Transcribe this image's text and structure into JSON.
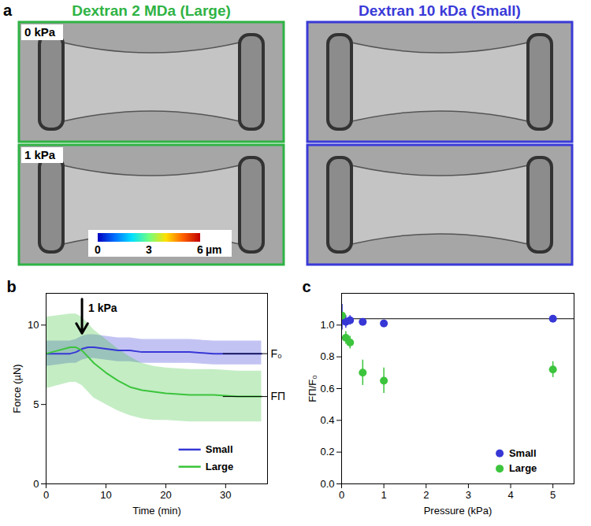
{
  "panel_a": {
    "label": "a",
    "columns": [
      {
        "title": "Dextran 2 MDa (Large)",
        "color": "#2fb344"
      },
      {
        "title": "Dextran 10 kDa (Small)",
        "color": "#3a3ad8"
      }
    ],
    "rows": [
      "0 kPa",
      "1 kPa"
    ],
    "colorbar": {
      "lim": [
        0,
        6
      ],
      "ticks": [
        0,
        3,
        6
      ],
      "unit": "µm"
    }
  },
  "chart_data": [
    {
      "type": "line",
      "panel": "b",
      "x_label": "Time (min)",
      "y_label": "Force (µN)",
      "x": [
        0,
        2,
        4,
        5,
        6,
        7,
        8,
        10,
        12,
        14,
        16,
        18,
        20,
        24,
        28,
        32,
        36
      ],
      "series": [
        {
          "name": "Small",
          "color": "#3737d6",
          "values": [
            8.2,
            8.2,
            8.2,
            8.3,
            8.5,
            8.6,
            8.6,
            8.5,
            8.4,
            8.4,
            8.3,
            8.3,
            8.3,
            8.3,
            8.2,
            8.2,
            8.2
          ],
          "lower": [
            7.4,
            7.5,
            7.6,
            7.6,
            7.8,
            7.9,
            7.9,
            7.8,
            7.7,
            7.7,
            7.6,
            7.6,
            7.6,
            7.6,
            7.5,
            7.5,
            7.5
          ],
          "upper": [
            9.0,
            9.0,
            9.0,
            9.1,
            9.3,
            9.4,
            9.4,
            9.3,
            9.2,
            9.2,
            9.1,
            9.1,
            9.1,
            9.1,
            9.0,
            9.0,
            9.0
          ]
        },
        {
          "name": "Large",
          "color": "#3cc43c",
          "values": [
            8.2,
            8.4,
            8.6,
            8.6,
            8.4,
            8.0,
            7.6,
            7.0,
            6.5,
            6.1,
            5.9,
            5.8,
            5.7,
            5.6,
            5.6,
            5.5,
            5.5
          ],
          "lower": [
            6.0,
            6.2,
            6.4,
            6.4,
            6.2,
            5.8,
            5.4,
            5.0,
            4.6,
            4.3,
            4.1,
            4.0,
            4.0,
            3.9,
            3.9,
            3.9,
            3.9
          ],
          "upper": [
            10.5,
            10.6,
            10.7,
            10.7,
            10.5,
            10.1,
            9.7,
            9.1,
            8.5,
            8.0,
            7.6,
            7.4,
            7.3,
            7.2,
            7.2,
            7.1,
            7.1
          ]
        }
      ],
      "reference_lines": [
        {
          "label": "F₀",
          "value": 8.2,
          "line_style": "dashed"
        },
        {
          "label": "FΠ",
          "value": 5.5,
          "line_style": "dashed"
        }
      ],
      "annotations": [
        {
          "text": "1 kPa",
          "x": 6
        }
      ],
      "xlim": [
        0,
        37
      ],
      "xticks": [
        0,
        10,
        20,
        30
      ],
      "ylim": [
        0,
        12
      ],
      "yticks": [
        0,
        5,
        10
      ],
      "legend": "bottom-right"
    },
    {
      "type": "scatter",
      "panel": "c",
      "x_label": "Pressure (kPa)",
      "y_label": "FΠ/F₀",
      "marker": "circle",
      "series": [
        {
          "name": "Small",
          "color": "#3737d6",
          "x": [
            0.01,
            0.1,
            0.2,
            0.5,
            1,
            5
          ],
          "values": [
            1.05,
            1.02,
            1.03,
            1.02,
            1.01,
            1.04
          ],
          "errors": [
            0.08,
            0.04,
            0.03,
            0.01,
            0.02,
            0.01
          ]
        },
        {
          "name": "Large",
          "color": "#3cc43c",
          "x": [
            0.01,
            0.1,
            0.2,
            0.5,
            1,
            5
          ],
          "values": [
            1.06,
            0.92,
            0.89,
            0.7,
            0.65,
            0.72
          ],
          "errors": [
            0.02,
            0.04,
            0.04,
            0.08,
            0.08,
            0.05
          ]
        }
      ],
      "reference_line": {
        "value": 1.04,
        "line_style": "dashed"
      },
      "xlim": [
        0,
        5.5
      ],
      "xticks": [
        0,
        1,
        2,
        3,
        4,
        5
      ],
      "ylim": [
        0,
        1.2
      ],
      "yticks": [
        {
          "value": 0,
          "label": "0.0"
        },
        {
          "value": 0.2,
          "label": "0.2"
        },
        {
          "value": 0.4,
          "label": "0.4"
        },
        {
          "value": 0.6,
          "label": "0.6"
        },
        {
          "value": 0.8,
          "label": "0.8"
        },
        {
          "value": 1,
          "label": "1.0"
        }
      ],
      "legend": "bottom-right"
    }
  ]
}
